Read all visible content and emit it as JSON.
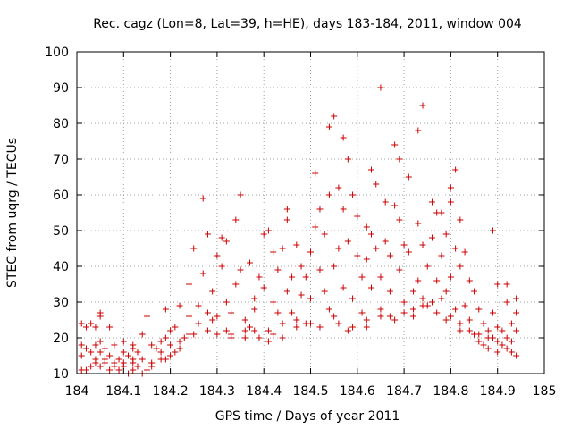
{
  "chart_data": {
    "type": "scatter",
    "title": "Rec. cagz (Lon=8, Lat=39, h=HE), days 183-184, 2011, window 004",
    "xlabel": "GPS time / Days of year 2011",
    "ylabel": "STEC from uqrg / TECUs",
    "xlim": [
      184,
      185
    ],
    "ylim": [
      10,
      100
    ],
    "x_ticks": [
      184,
      184.1,
      184.2,
      184.3,
      184.4,
      184.5,
      184.6,
      184.7,
      184.8,
      184.9,
      185
    ],
    "x_tick_labels": [
      "184",
      "184.1",
      "184.2",
      "184.3",
      "184.4",
      "184.5",
      "184.6",
      "184.7",
      "184.8",
      "184.9",
      "185"
    ],
    "y_ticks": [
      10,
      20,
      30,
      40,
      50,
      60,
      70,
      80,
      90,
      100
    ],
    "y_tick_labels": [
      "10",
      "20",
      "30",
      "40",
      "50",
      "60",
      "70",
      "80",
      "90",
      "100"
    ],
    "grid": true,
    "marker": "+",
    "color": "#cc0000",
    "series": [
      {
        "name": "STEC",
        "points": [
          [
            184.01,
            24
          ],
          [
            184.02,
            23
          ],
          [
            184.03,
            24
          ],
          [
            184.04,
            23
          ],
          [
            184.05,
            27
          ],
          [
            184.05,
            26
          ],
          [
            184.07,
            23
          ],
          [
            184.01,
            18
          ],
          [
            184.02,
            17
          ],
          [
            184.04,
            18
          ],
          [
            184.05,
            19
          ],
          [
            184.06,
            17
          ],
          [
            184.08,
            18
          ],
          [
            184.1,
            19
          ],
          [
            184.12,
            18
          ],
          [
            184.01,
            15
          ],
          [
            184.03,
            16
          ],
          [
            184.05,
            16
          ],
          [
            184.07,
            15
          ],
          [
            184.09,
            14
          ],
          [
            184.11,
            15
          ],
          [
            184.12,
            14
          ],
          [
            184.01,
            11
          ],
          [
            184.02,
            11
          ],
          [
            184.03,
            12
          ],
          [
            184.04,
            13
          ],
          [
            184.05,
            12
          ],
          [
            184.06,
            14
          ],
          [
            184.07,
            11
          ],
          [
            184.08,
            12
          ],
          [
            184.09,
            11
          ],
          [
            184.1,
            12
          ],
          [
            184.11,
            10
          ],
          [
            184.12,
            11
          ],
          [
            184.13,
            12
          ],
          [
            184.14,
            10
          ],
          [
            184.15,
            11
          ],
          [
            184.16,
            12
          ],
          [
            184.1,
            16
          ],
          [
            184.12,
            17
          ],
          [
            184.13,
            16
          ],
          [
            184.14,
            21
          ],
          [
            184.15,
            26
          ],
          [
            184.16,
            18
          ],
          [
            184.17,
            17
          ],
          [
            184.18,
            16
          ],
          [
            184.18,
            19
          ],
          [
            184.19,
            20
          ],
          [
            184.19,
            14
          ],
          [
            184.2,
            15
          ],
          [
            184.2,
            22
          ],
          [
            184.21,
            23
          ],
          [
            184.21,
            16
          ],
          [
            184.22,
            17
          ],
          [
            184.19,
            28
          ],
          [
            184.22,
            29
          ],
          [
            184.23,
            20
          ],
          [
            184.24,
            35
          ],
          [
            184.24,
            26
          ],
          [
            184.25,
            21
          ],
          [
            184.25,
            45
          ],
          [
            184.26,
            29
          ],
          [
            184.27,
            59
          ],
          [
            184.27,
            38
          ],
          [
            184.28,
            22
          ],
          [
            184.28,
            49
          ],
          [
            184.29,
            33
          ],
          [
            184.29,
            25
          ],
          [
            184.3,
            21
          ],
          [
            184.3,
            43
          ],
          [
            184.31,
            48
          ],
          [
            184.31,
            40
          ],
          [
            184.32,
            47
          ],
          [
            184.32,
            30
          ],
          [
            184.32,
            22
          ],
          [
            184.33,
            21
          ],
          [
            184.33,
            27
          ],
          [
            184.34,
            53
          ],
          [
            184.34,
            35
          ],
          [
            184.35,
            60
          ],
          [
            184.35,
            39
          ],
          [
            184.36,
            25
          ],
          [
            184.36,
            20
          ],
          [
            184.37,
            23
          ],
          [
            184.37,
            41
          ],
          [
            184.38,
            31
          ],
          [
            184.38,
            28
          ],
          [
            184.39,
            37
          ],
          [
            184.39,
            20
          ],
          [
            184.4,
            49
          ],
          [
            184.4,
            34
          ],
          [
            184.41,
            22
          ],
          [
            184.41,
            50
          ],
          [
            184.42,
            44
          ],
          [
            184.42,
            30
          ],
          [
            184.42,
            21
          ],
          [
            184.43,
            27
          ],
          [
            184.43,
            39
          ],
          [
            184.44,
            24
          ],
          [
            184.44,
            45
          ],
          [
            184.45,
            56
          ],
          [
            184.45,
            53
          ],
          [
            184.45,
            33
          ],
          [
            184.46,
            37
          ],
          [
            184.46,
            27
          ],
          [
            184.47,
            46
          ],
          [
            184.47,
            23
          ],
          [
            184.48,
            40
          ],
          [
            184.48,
            32
          ],
          [
            184.49,
            24
          ],
          [
            184.49,
            37
          ],
          [
            184.5,
            31
          ],
          [
            184.5,
            44
          ],
          [
            184.51,
            66
          ],
          [
            184.51,
            51
          ],
          [
            184.52,
            39
          ],
          [
            184.52,
            56
          ],
          [
            184.52,
            23
          ],
          [
            184.53,
            49
          ],
          [
            184.53,
            33
          ],
          [
            184.54,
            79
          ],
          [
            184.54,
            60
          ],
          [
            184.55,
            82
          ],
          [
            184.55,
            40
          ],
          [
            184.55,
            26
          ],
          [
            184.56,
            62
          ],
          [
            184.56,
            45
          ],
          [
            184.57,
            76
          ],
          [
            184.57,
            56
          ],
          [
            184.57,
            34
          ],
          [
            184.58,
            70
          ],
          [
            184.58,
            47
          ],
          [
            184.59,
            60
          ],
          [
            184.59,
            31
          ],
          [
            184.59,
            23
          ],
          [
            184.6,
            54
          ],
          [
            184.6,
            43
          ],
          [
            184.61,
            37
          ],
          [
            184.61,
            27
          ],
          [
            184.62,
            51
          ],
          [
            184.62,
            42
          ],
          [
            184.62,
            23
          ],
          [
            184.63,
            67
          ],
          [
            184.63,
            49
          ],
          [
            184.63,
            34
          ],
          [
            184.64,
            63
          ],
          [
            184.64,
            45
          ],
          [
            184.65,
            90
          ],
          [
            184.65,
            37
          ],
          [
            184.65,
            28
          ],
          [
            184.66,
            58
          ],
          [
            184.66,
            47
          ],
          [
            184.67,
            43
          ],
          [
            184.67,
            33
          ],
          [
            184.68,
            74
          ],
          [
            184.68,
            57
          ],
          [
            184.68,
            25
          ],
          [
            184.69,
            70
          ],
          [
            184.69,
            53
          ],
          [
            184.69,
            39
          ],
          [
            184.7,
            46
          ],
          [
            184.7,
            30
          ],
          [
            184.71,
            65
          ],
          [
            184.71,
            44
          ],
          [
            184.72,
            33
          ],
          [
            184.72,
            26
          ],
          [
            184.73,
            78
          ],
          [
            184.73,
            52
          ],
          [
            184.73,
            36
          ],
          [
            184.74,
            85
          ],
          [
            184.74,
            46
          ],
          [
            184.74,
            31
          ],
          [
            184.75,
            40
          ],
          [
            184.75,
            29
          ],
          [
            184.76,
            58
          ],
          [
            184.76,
            48
          ],
          [
            184.77,
            55
          ],
          [
            184.77,
            36
          ],
          [
            184.77,
            27
          ],
          [
            184.78,
            55
          ],
          [
            184.78,
            43
          ],
          [
            184.79,
            49
          ],
          [
            184.79,
            33
          ],
          [
            184.79,
            25
          ],
          [
            184.8,
            62
          ],
          [
            184.8,
            58
          ],
          [
            184.8,
            37
          ],
          [
            184.81,
            67
          ],
          [
            184.81,
            45
          ],
          [
            184.81,
            28
          ],
          [
            184.82,
            53
          ],
          [
            184.82,
            40
          ],
          [
            184.82,
            22
          ],
          [
            184.83,
            44
          ],
          [
            184.83,
            29
          ],
          [
            184.84,
            36
          ],
          [
            184.84,
            25
          ],
          [
            184.85,
            21
          ],
          [
            184.85,
            33
          ],
          [
            184.86,
            28
          ],
          [
            184.86,
            19
          ],
          [
            184.87,
            24
          ],
          [
            184.87,
            18
          ],
          [
            184.88,
            22
          ],
          [
            184.88,
            17
          ],
          [
            184.89,
            50
          ],
          [
            184.89,
            27
          ],
          [
            184.89,
            20
          ],
          [
            184.9,
            16
          ],
          [
            184.9,
            35
          ],
          [
            184.91,
            22
          ],
          [
            184.91,
            18
          ],
          [
            184.92,
            35
          ],
          [
            184.92,
            30
          ],
          [
            184.92,
            17
          ],
          [
            184.93,
            24
          ],
          [
            184.93,
            16
          ],
          [
            184.94,
            31
          ],
          [
            184.94,
            27
          ],
          [
            184.94,
            15
          ],
          [
            184.93,
            19
          ],
          [
            184.9,
            23
          ],
          [
            184.56,
            24
          ],
          [
            184.58,
            22
          ],
          [
            184.54,
            28
          ],
          [
            184.5,
            24
          ],
          [
            184.47,
            25
          ],
          [
            184.44,
            20
          ],
          [
            184.41,
            19
          ],
          [
            184.38,
            22
          ],
          [
            184.36,
            22
          ],
          [
            184.33,
            20
          ],
          [
            184.3,
            26
          ],
          [
            184.28,
            27
          ],
          [
            184.26,
            24
          ],
          [
            184.24,
            21
          ],
          [
            184.22,
            19
          ],
          [
            184.2,
            18
          ],
          [
            184.18,
            14
          ],
          [
            184.16,
            13
          ],
          [
            184.14,
            14
          ],
          [
            184.12,
            13
          ],
          [
            184.1,
            13
          ],
          [
            184.08,
            13
          ],
          [
            184.06,
            13
          ],
          [
            184.04,
            14
          ],
          [
            184.62,
            25
          ],
          [
            184.65,
            26
          ],
          [
            184.67,
            26
          ],
          [
            184.7,
            27
          ],
          [
            184.72,
            28
          ],
          [
            184.74,
            29
          ],
          [
            184.76,
            30
          ],
          [
            184.78,
            31
          ],
          [
            184.8,
            26
          ],
          [
            184.82,
            24
          ],
          [
            184.84,
            22
          ],
          [
            184.86,
            21
          ],
          [
            184.88,
            20
          ],
          [
            184.9,
            19
          ],
          [
            184.92,
            20
          ],
          [
            184.94,
            22
          ]
        ]
      }
    ]
  }
}
